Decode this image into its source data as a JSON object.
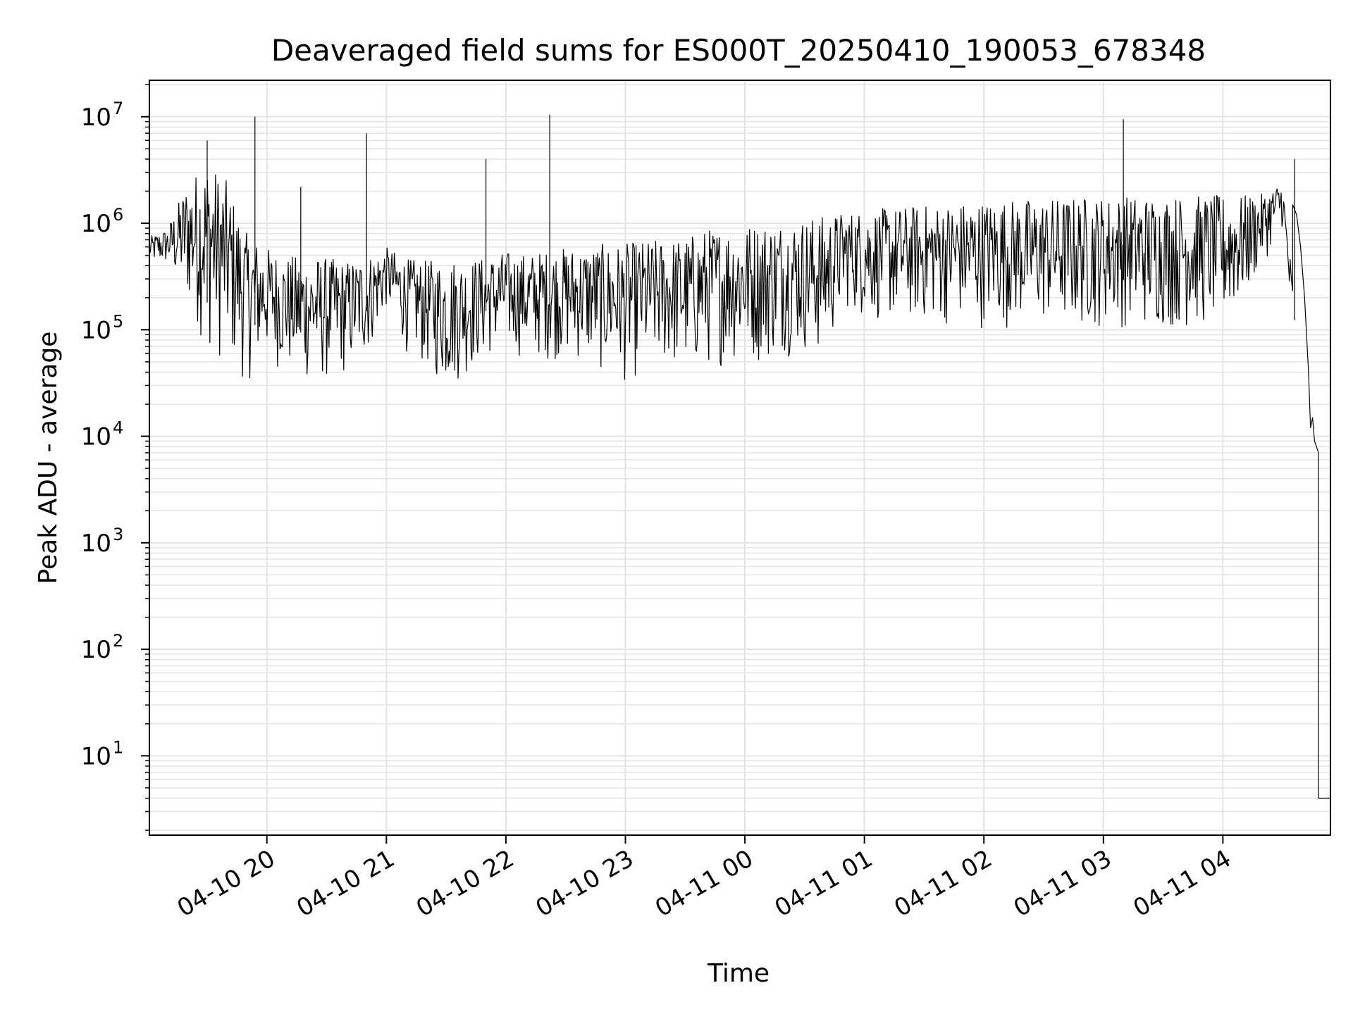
{
  "chart_data": {
    "type": "line",
    "title": "Deaveraged field sums for ES000T_20250410_190053_678348",
    "xlabel": "Time",
    "ylabel": "Peak ADU - average",
    "yscale": "log",
    "ylim": [
      1.8,
      22000000
    ],
    "xlim": [
      "04-10 19:01",
      "04-11 04:54"
    ],
    "grid": true,
    "x_ticks": [
      "04-10 20",
      "04-10 21",
      "04-10 22",
      "04-10 23",
      "04-11 00",
      "04-11 01",
      "04-11 02",
      "04-11 03",
      "04-11 04"
    ],
    "y_ticks": [
      {
        "base": "10",
        "exp": "1",
        "value": 10
      },
      {
        "base": "10",
        "exp": "2",
        "value": 100
      },
      {
        "base": "10",
        "exp": "3",
        "value": 1000
      },
      {
        "base": "10",
        "exp": "4",
        "value": 10000
      },
      {
        "base": "10",
        "exp": "5",
        "value": 100000
      },
      {
        "base": "10",
        "exp": "6",
        "value": 1000000
      },
      {
        "base": "10",
        "exp": "7",
        "value": 10000000
      }
    ],
    "line_color": "#000000",
    "series": [
      {
        "x": [
          "04-10 19:01",
          "04-10 19:10",
          "04-10 19:20",
          "04-10 19:30",
          "04-10 19:40",
          "04-10 19:50",
          "04-10 20:00",
          "04-10 20:10",
          "04-10 20:20",
          "04-10 20:30",
          "04-10 20:40",
          "04-10 20:50",
          "04-10 21:00",
          "04-10 21:10",
          "04-10 21:20",
          "04-10 21:30",
          "04-10 21:40",
          "04-10 21:50",
          "04-10 22:00",
          "04-10 22:10",
          "04-10 22:20",
          "04-10 22:30",
          "04-10 22:40",
          "04-10 22:50",
          "04-10 23:00",
          "04-10 23:10",
          "04-10 23:20",
          "04-10 23:30",
          "04-10 23:40",
          "04-10 23:50",
          "04-11 00:00",
          "04-11 00:10",
          "04-11 00:20",
          "04-11 00:30",
          "04-11 00:40",
          "04-11 00:50",
          "04-11 01:00",
          "04-11 01:10",
          "04-11 01:20",
          "04-11 01:30",
          "04-11 01:40",
          "04-11 01:50",
          "04-11 02:00",
          "04-11 02:10",
          "04-11 02:20",
          "04-11 02:30",
          "04-11 02:40",
          "04-11 02:50",
          "04-11 03:00",
          "04-11 03:10",
          "04-11 03:20",
          "04-11 03:30",
          "04-11 03:40",
          "04-11 03:50",
          "04-11 04:00",
          "04-11 04:10",
          "04-11 04:20",
          "04-11 04:30",
          "04-11 04:35",
          "04-11 04:40",
          "04-11 04:45",
          "04-11 04:48",
          "04-11 04:50",
          "04-11 04:54"
        ],
        "low": [
          400000,
          380000,
          150000,
          60000,
          40000,
          30000,
          50000,
          35000,
          30000,
          30000,
          35000,
          50000,
          150000,
          60000,
          40000,
          25000,
          35000,
          50000,
          60000,
          50000,
          50000,
          50000,
          45000,
          35000,
          30000,
          35000,
          40000,
          35000,
          40000,
          45000,
          45000,
          45000,
          55000,
          55000,
          50000,
          150000,
          120000,
          110000,
          110000,
          110000,
          105000,
          100000,
          100000,
          100000,
          100000,
          100000,
          95000,
          95000,
          100000,
          100000,
          95000,
          95000,
          95000,
          95000,
          100000,
          150000,
          400000,
          900000,
          60000,
          9000,
          7000,
          5,
          4,
          4
        ],
        "high": [
          750000,
          900000,
          2500000,
          4000000,
          2500000,
          800000,
          600000,
          500000,
          500000,
          480000,
          450000,
          500000,
          600000,
          470000,
          450000,
          480000,
          470000,
          480000,
          550000,
          520000,
          560000,
          600000,
          620000,
          650000,
          650000,
          700000,
          720000,
          750000,
          900000,
          950000,
          1000000,
          1050000,
          1100000,
          1150000,
          1200000,
          1300000,
          1350000,
          1400000,
          1450000,
          1500000,
          1550000,
          1600000,
          1650000,
          1700000,
          1700000,
          1750000,
          1750000,
          1800000,
          1800000,
          1850000,
          1850000,
          1850000,
          1850000,
          1850000,
          1850000,
          1850000,
          1900000,
          2500000,
          300000,
          15000,
          8000,
          5,
          4,
          4
        ]
      }
    ],
    "spikes": [
      {
        "x": "04-10 19:54",
        "y": 10000000
      },
      {
        "x": "04-10 20:50",
        "y": 7000000
      },
      {
        "x": "04-10 21:50",
        "y": 4000000
      },
      {
        "x": "04-10 22:22",
        "y": 10500000
      },
      {
        "x": "04-10 19:30",
        "y": 6000000
      },
      {
        "x": "04-10 20:17",
        "y": 2200000
      },
      {
        "x": "04-11 03:10",
        "y": 9500000
      },
      {
        "x": "04-11 04:36",
        "y": 4000000
      }
    ]
  }
}
